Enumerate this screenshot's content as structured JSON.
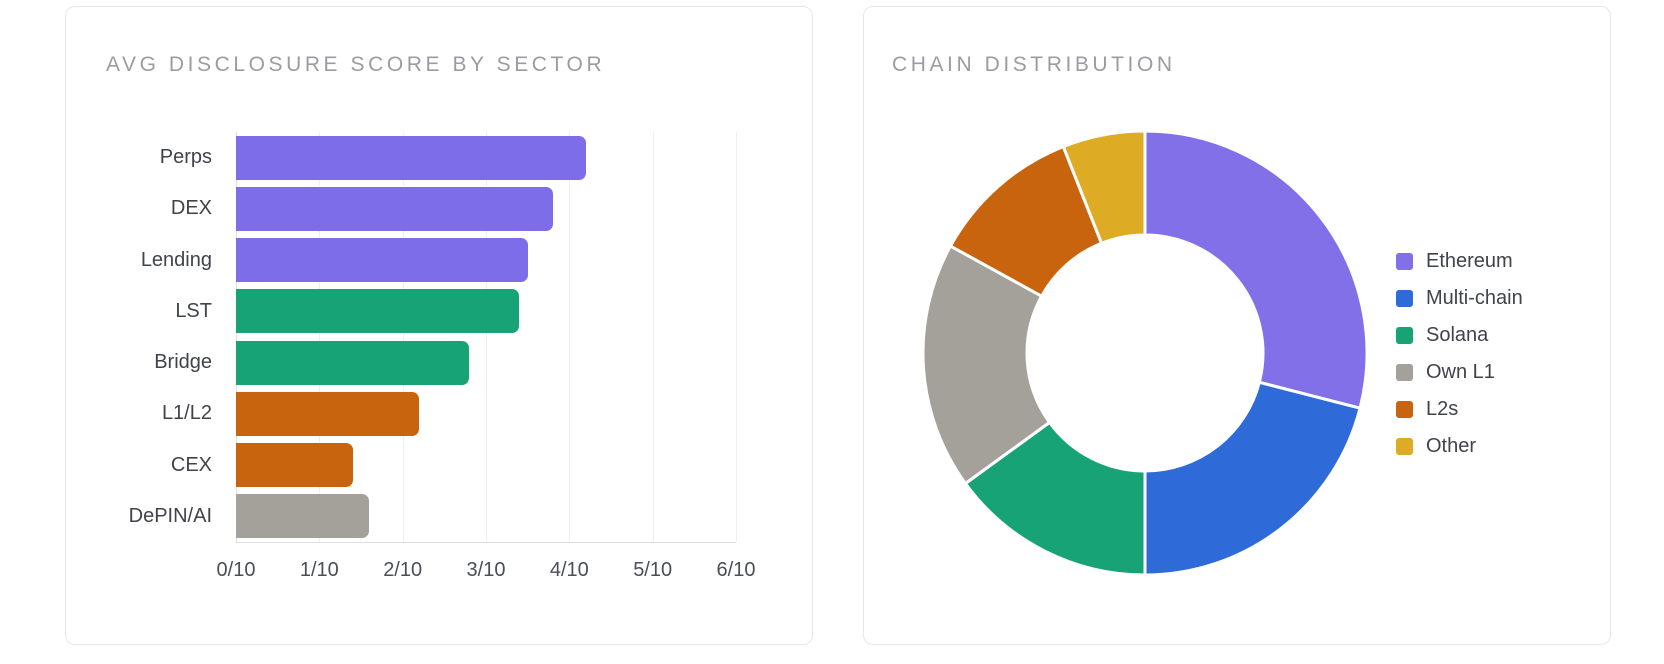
{
  "chart_data": [
    {
      "type": "bar",
      "orientation": "horizontal",
      "title": "AVG DISCLOSURE SCORE BY SECTOR",
      "categories": [
        "Perps",
        "DEX",
        "Lending",
        "LST",
        "Bridge",
        "L1/L2",
        "CEX",
        "DePIN/AI"
      ],
      "values": [
        4.2,
        3.8,
        3.5,
        3.4,
        2.8,
        2.2,
        1.4,
        1.6
      ],
      "bar_colors": [
        "#7e6de8",
        "#7e6de8",
        "#7e6de8",
        "#18a377",
        "#18a377",
        "#c8640e",
        "#c8640e",
        "#a4a09a"
      ],
      "x_ticks": [
        "0/10",
        "1/10",
        "2/10",
        "3/10",
        "4/10",
        "5/10",
        "6/10"
      ],
      "xlim": [
        0,
        6
      ],
      "xlabel": "",
      "ylabel": "",
      "grid": true,
      "legend": false
    },
    {
      "type": "pie",
      "subtype": "donut",
      "title": "CHAIN DISTRIBUTION",
      "labels": [
        "Ethereum",
        "Multi-chain",
        "Solana",
        "Own L1",
        "L2s",
        "Other"
      ],
      "values": [
        29,
        21,
        15,
        18,
        11,
        6
      ],
      "unit": "%",
      "colors": [
        "#8170e8",
        "#2e6bd8",
        "#18a377",
        "#a4a09a",
        "#c8640e",
        "#deab25"
      ],
      "start_angle_deg": 0,
      "direction": "clockwise",
      "inner_radius_ratio": 0.53,
      "segment_gap_color": "#ffffff",
      "legend_position": "right"
    }
  ],
  "style": {
    "title_color": "#9b9ca3",
    "label_color": "#3f434b",
    "tick_color": "#4a4e56",
    "gridline_color": "#eeeef3",
    "axis_color": "#dedee5",
    "card_background": "#ffffff",
    "card_border": "#e7e7ec"
  }
}
